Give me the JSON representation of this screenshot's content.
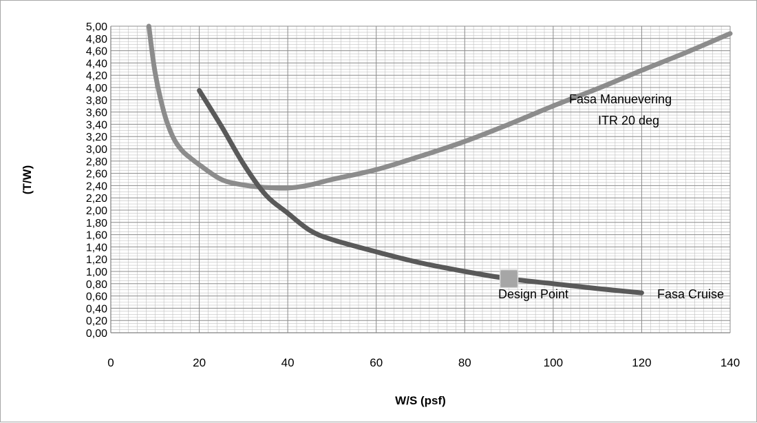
{
  "chart_data": {
    "type": "line",
    "title": "",
    "xlabel": "W/S (psf)",
    "ylabel": "(T/W)",
    "xlim": [
      0,
      140
    ],
    "ylim": [
      0,
      5
    ],
    "x_ticks": [
      0,
      20,
      40,
      60,
      80,
      100,
      120,
      140
    ],
    "x_tick_labels": [
      "0",
      "20",
      "40",
      "60",
      "80",
      "100",
      "120",
      "140"
    ],
    "y_ticks": [
      0,
      0.2,
      0.4,
      0.6,
      0.8,
      1.0,
      1.2,
      1.4,
      1.6,
      1.8,
      2.0,
      2.2,
      2.4,
      2.6,
      2.8,
      3.0,
      3.2,
      3.4,
      3.6,
      3.8,
      4.0,
      4.2,
      4.4,
      4.6,
      4.8,
      5.0
    ],
    "y_tick_labels": [
      "0,00",
      "0,20",
      "0,40",
      "0,60",
      "0,80",
      "1,00",
      "1,20",
      "1,40",
      "1,60",
      "1,80",
      "2,00",
      "2,20",
      "2,40",
      "2,60",
      "2,80",
      "3,00",
      "3,20",
      "3,40",
      "3,60",
      "3,80",
      "4,00",
      "4,20",
      "4,40",
      "4,60",
      "4,80",
      "5,00"
    ],
    "grid": true,
    "legend": "none",
    "series": [
      {
        "color": "#8c8c8c",
        "x": [
          8.6,
          10,
          12,
          14,
          16,
          18,
          20,
          25,
          30,
          35,
          40,
          45,
          50,
          60,
          70,
          80,
          90,
          100,
          110,
          120,
          130,
          140
        ],
        "y": [
          5.0,
          4.25,
          3.6,
          3.2,
          2.98,
          2.85,
          2.74,
          2.5,
          2.41,
          2.37,
          2.36,
          2.41,
          2.5,
          2.66,
          2.88,
          3.12,
          3.4,
          3.7,
          3.98,
          4.28,
          4.57,
          4.88
        ]
      },
      {
        "color": "#595959",
        "x": [
          20,
          25,
          30,
          35,
          40,
          45,
          50,
          60,
          70,
          80,
          90,
          100,
          110,
          120
        ],
        "y": [
          3.95,
          3.37,
          2.75,
          2.25,
          1.95,
          1.67,
          1.52,
          1.32,
          1.14,
          1.0,
          0.88,
          0.8,
          0.72,
          0.65
        ]
      }
    ],
    "markers": [
      {
        "x": 90,
        "y": 0.88,
        "color": "#a6a6a6"
      }
    ],
    "annotations": {
      "maneuvering_line1": "Fasa Manuevering",
      "maneuvering_line2": "ITR 20 deg",
      "design_point": "Design Point",
      "cruise": "Fasa Cruise"
    }
  }
}
